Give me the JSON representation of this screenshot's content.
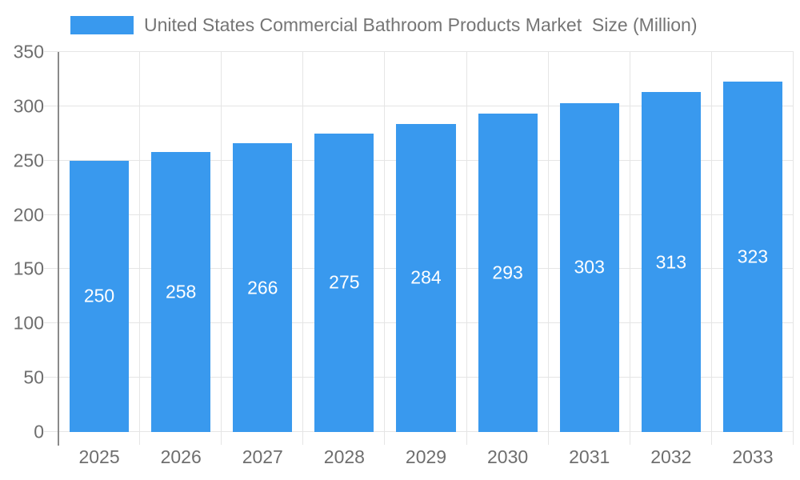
{
  "chart_data": {
    "type": "bar",
    "title": "United States Commercial Bathroom Products Market  Size (Million)",
    "categories": [
      "2025",
      "2026",
      "2027",
      "2028",
      "2029",
      "2030",
      "2031",
      "2032",
      "2033"
    ],
    "values": [
      250,
      258,
      266,
      275,
      284,
      293,
      303,
      313,
      323
    ],
    "value_labels": [
      "250",
      "258",
      "266",
      "275",
      "284",
      "293",
      "303",
      "313",
      "323"
    ],
    "xlabel": "",
    "ylabel": "",
    "ylim": [
      0,
      350
    ],
    "ytick_step": 50,
    "yticks": [
      "0",
      "50",
      "100",
      "150",
      "200",
      "250",
      "300",
      "350"
    ],
    "grid": "on",
    "legend_position": "top-left",
    "colors": {
      "bar": "#3999ee",
      "value_label": "#ffffff",
      "grid_line": "#e5e5e5",
      "axis_line": "#8a8a8a",
      "tick_label": "#6e6e6e",
      "legend_text": "#757575",
      "background": "#ffffff"
    }
  }
}
